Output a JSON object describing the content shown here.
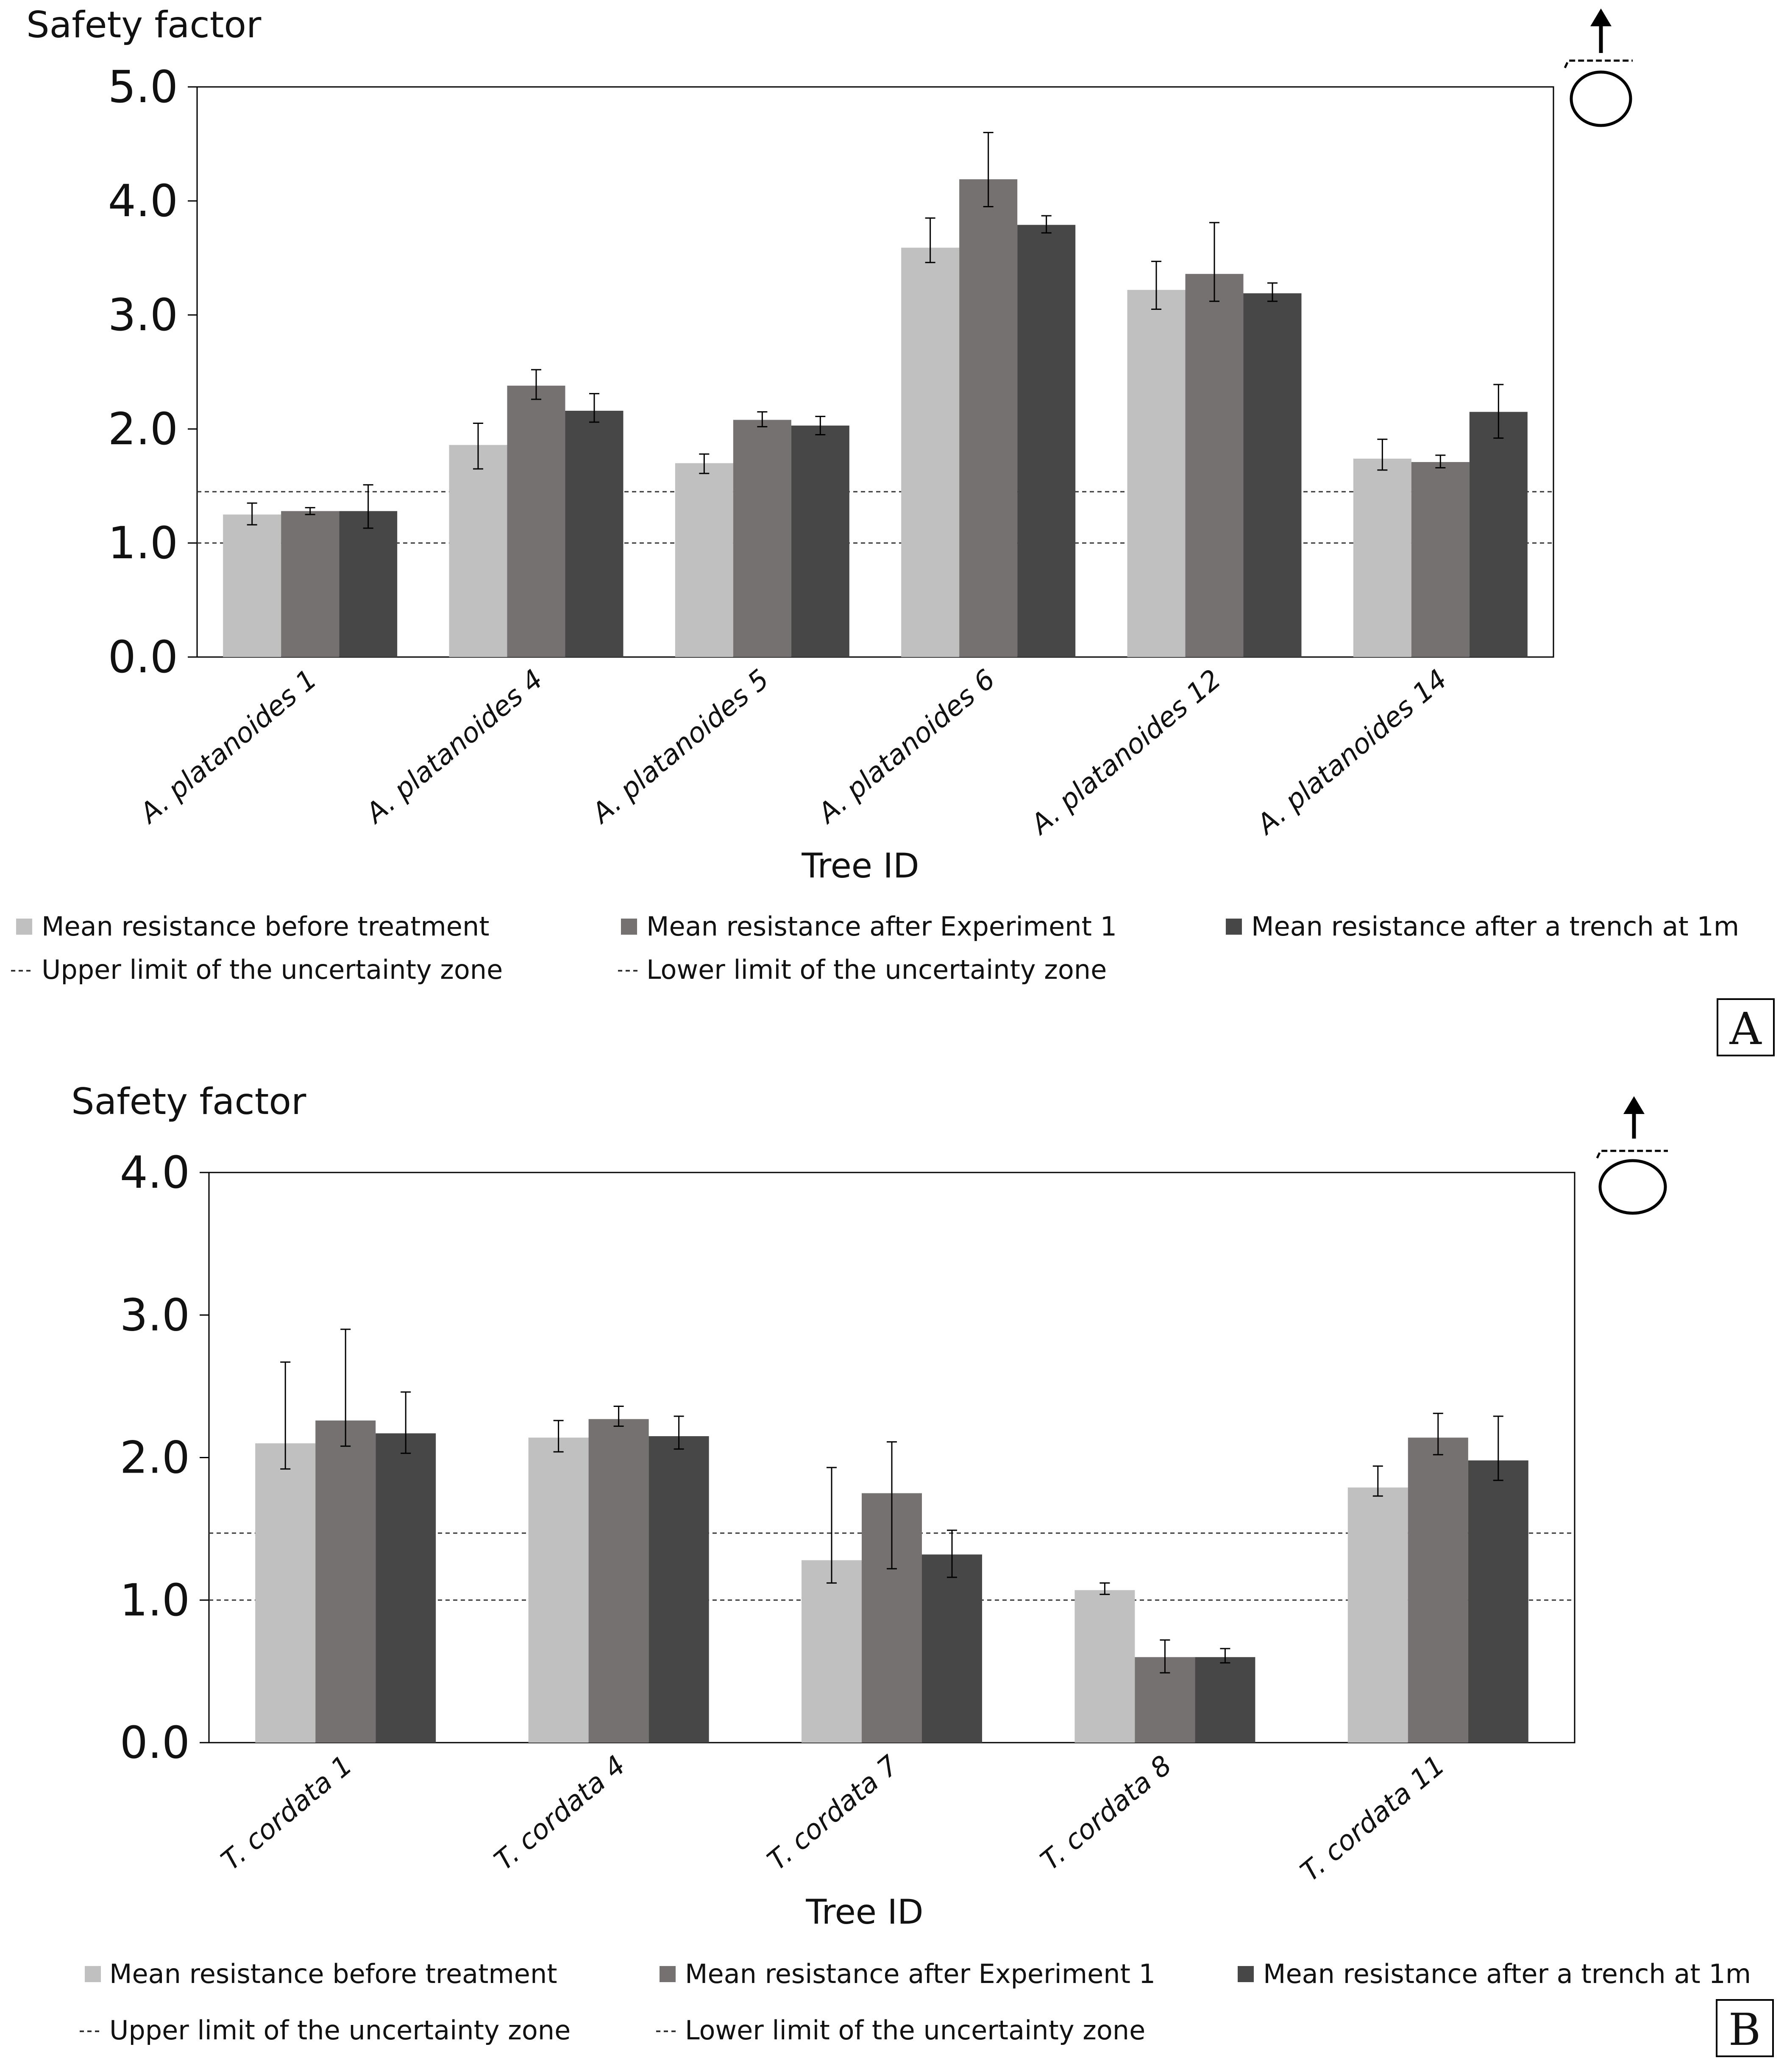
{
  "colors": {
    "before": "#c0c0c0",
    "exp1": "#767171",
    "trench": "#474747",
    "axis": "#000000",
    "limit": "#555555"
  },
  "series_names": [
    "Mean resistance before treatment",
    "Mean resistance after Experiment 1",
    "Mean resistance after a trench at 1m"
  ],
  "limit_names": [
    "Upper limit of the uncertainty zone",
    "Lower limit of the uncertainty zone"
  ],
  "icon": "tree-pull-direction-icon",
  "chart_data": [
    {
      "type": "bar",
      "panel": "A",
      "title": "",
      "ylabel": "Safety factor",
      "xlabel": "Tree ID",
      "ylim": [
        0,
        5
      ],
      "yticks": [
        "0.0",
        "1.0",
        "2.0",
        "3.0",
        "4.0",
        "5.0"
      ],
      "categories": [
        "A. platanoides 1",
        "A. platanoides 4",
        "A. platanoides 5",
        "A. platanoides 6",
        "A. platanoides 12",
        "A. platanoides 14"
      ],
      "series": [
        {
          "name": "Mean resistance before treatment",
          "values": [
            1.25,
            1.86,
            1.7,
            3.59,
            3.22,
            1.74
          ],
          "err_low": [
            0.09,
            0.21,
            0.09,
            0.13,
            0.17,
            0.1
          ],
          "err_high": [
            0.1,
            0.19,
            0.08,
            0.26,
            0.25,
            0.17
          ]
        },
        {
          "name": "Mean resistance after Experiment 1",
          "values": [
            1.28,
            2.38,
            2.08,
            4.19,
            3.36,
            1.71
          ],
          "err_low": [
            0.03,
            0.12,
            0.06,
            0.24,
            0.24,
            0.05
          ],
          "err_high": [
            0.03,
            0.14,
            0.07,
            0.41,
            0.45,
            0.06
          ]
        },
        {
          "name": "Mean resistance after a trench at 1m",
          "values": [
            1.28,
            2.16,
            2.03,
            3.79,
            3.19,
            2.15
          ],
          "err_low": [
            0.15,
            0.1,
            0.08,
            0.07,
            0.07,
            0.23
          ],
          "err_high": [
            0.23,
            0.15,
            0.08,
            0.08,
            0.09,
            0.24
          ]
        }
      ],
      "hlines": [
        {
          "name": "Upper limit of the uncertainty zone",
          "y": 1.45
        },
        {
          "name": "Lower limit of the uncertainty zone",
          "y": 1.0
        }
      ],
      "legend": "bottom"
    },
    {
      "type": "bar",
      "panel": "B",
      "title": "",
      "ylabel": "Safety factor",
      "xlabel": "Tree ID",
      "ylim": [
        0,
        4
      ],
      "yticks": [
        "0.0",
        "1.0",
        "2.0",
        "3.0",
        "4.0"
      ],
      "categories": [
        "T. cordata 1",
        "T. cordata 4",
        "T. cordata 7",
        "T. cordata 8",
        "T. cordata 11"
      ],
      "series": [
        {
          "name": "Mean resistance before treatment",
          "values": [
            2.1,
            2.14,
            1.28,
            1.07,
            1.79
          ],
          "err_low": [
            0.18,
            0.1,
            0.16,
            0.03,
            0.06
          ],
          "err_high": [
            0.57,
            0.12,
            0.65,
            0.05,
            0.15
          ]
        },
        {
          "name": "Mean resistance after Experiment 1",
          "values": [
            2.26,
            2.27,
            1.75,
            0.6,
            2.14
          ],
          "err_low": [
            0.18,
            0.05,
            0.53,
            0.11,
            0.12
          ],
          "err_high": [
            0.64,
            0.09,
            0.36,
            0.12,
            0.17
          ]
        },
        {
          "name": "Mean resistance after a trench at 1m",
          "values": [
            2.17,
            2.15,
            1.32,
            0.6,
            1.98
          ],
          "err_low": [
            0.14,
            0.09,
            0.16,
            0.04,
            0.14
          ],
          "err_high": [
            0.29,
            0.14,
            0.17,
            0.06,
            0.31
          ]
        }
      ],
      "hlines": [
        {
          "name": "Upper limit of the uncertainty zone",
          "y": 1.47
        },
        {
          "name": "Lower limit of the uncertainty zone",
          "y": 1.0
        }
      ],
      "legend": "bottom"
    }
  ]
}
